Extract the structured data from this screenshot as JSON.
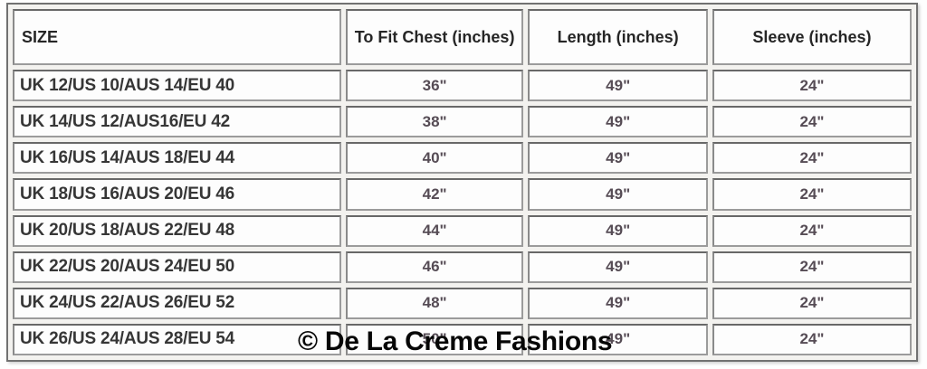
{
  "colors": {
    "page_background": "#fefefe",
    "table_outer_border": "#717171",
    "cell_border": "#9b9b9b",
    "cell_background": "#fdfdfd",
    "header_text": "#262626",
    "size_text": "#363636",
    "value_text": "#564c55",
    "watermark_text": "#060606"
  },
  "watermark": {
    "text": "© De La Creme Fashions"
  },
  "size_chart": {
    "columns": [
      "SIZE",
      "To Fit Chest (inches)",
      "Length (inches)",
      "Sleeve (inches)"
    ],
    "rows": [
      {
        "size": "UK 12/US 10/AUS 14/EU 40",
        "chest": "36\"",
        "length": "49\"",
        "sleeve": "24\""
      },
      {
        "size": "UK 14/US 12/AUS16/EU 42",
        "chest": "38\"",
        "length": "49\"",
        "sleeve": "24\""
      },
      {
        "size": "UK 16/US 14/AUS 18/EU 44",
        "chest": "40\"",
        "length": "49\"",
        "sleeve": "24\""
      },
      {
        "size": "UK 18/US 16/AUS 20/EU 46",
        "chest": "42\"",
        "length": "49\"",
        "sleeve": "24\""
      },
      {
        "size": "UK 20/US 18/AUS 22/EU 48",
        "chest": "44\"",
        "length": "49\"",
        "sleeve": "24\""
      },
      {
        "size": "UK 22/US 20/AUS 24/EU 50",
        "chest": "46\"",
        "length": "49\"",
        "sleeve": "24\""
      },
      {
        "size": "UK 24/US 22/AUS 26/EU 52",
        "chest": "48\"",
        "length": "49\"",
        "sleeve": "24\""
      },
      {
        "size": "UK 26/US 24/AUS 28/EU 54",
        "chest": "50\"",
        "length": "49\"",
        "sleeve": "24\""
      }
    ]
  }
}
